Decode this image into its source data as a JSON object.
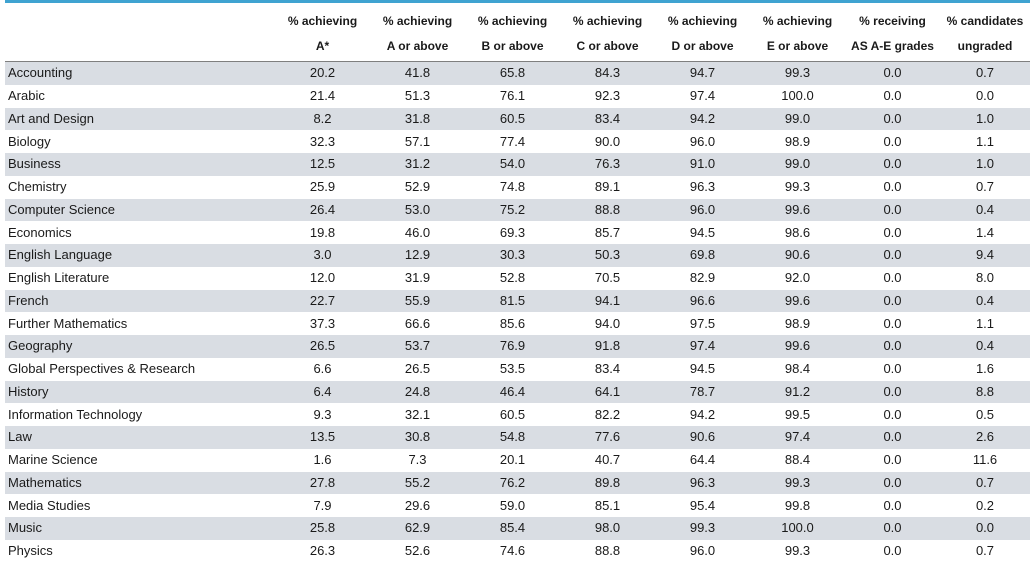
{
  "headers": [
    {
      "line1": "",
      "line2": ""
    },
    {
      "line1": "% achieving",
      "line2": "A*"
    },
    {
      "line1": "% achieving",
      "line2": "A or above"
    },
    {
      "line1": "% achieving",
      "line2": "B or above"
    },
    {
      "line1": "% achieving",
      "line2": "C or above"
    },
    {
      "line1": "% achieving",
      "line2": "D or above"
    },
    {
      "line1": "% achieving",
      "line2": "E or above"
    },
    {
      "line1": "% receiving",
      "line2": "AS A-E grades"
    },
    {
      "line1": "% candidates",
      "line2": "ungraded"
    }
  ],
  "rows": [
    [
      "Accounting",
      "20.2",
      "41.8",
      "65.8",
      "84.3",
      "94.7",
      "99.3",
      "0.0",
      "0.7"
    ],
    [
      "Arabic",
      "21.4",
      "51.3",
      "76.1",
      "92.3",
      "97.4",
      "100.0",
      "0.0",
      "0.0"
    ],
    [
      "Art and Design",
      "8.2",
      "31.8",
      "60.5",
      "83.4",
      "94.2",
      "99.0",
      "0.0",
      "1.0"
    ],
    [
      "Biology",
      "32.3",
      "57.1",
      "77.4",
      "90.0",
      "96.0",
      "98.9",
      "0.0",
      "1.1"
    ],
    [
      "Business",
      "12.5",
      "31.2",
      "54.0",
      "76.3",
      "91.0",
      "99.0",
      "0.0",
      "1.0"
    ],
    [
      "Chemistry",
      "25.9",
      "52.9",
      "74.8",
      "89.1",
      "96.3",
      "99.3",
      "0.0",
      "0.7"
    ],
    [
      "Computer Science",
      "26.4",
      "53.0",
      "75.2",
      "88.8",
      "96.0",
      "99.6",
      "0.0",
      "0.4"
    ],
    [
      "Economics",
      "19.8",
      "46.0",
      "69.3",
      "85.7",
      "94.5",
      "98.6",
      "0.0",
      "1.4"
    ],
    [
      "English Language",
      "3.0",
      "12.9",
      "30.3",
      "50.3",
      "69.8",
      "90.6",
      "0.0",
      "9.4"
    ],
    [
      "English Literature",
      "12.0",
      "31.9",
      "52.8",
      "70.5",
      "82.9",
      "92.0",
      "0.0",
      "8.0"
    ],
    [
      "French",
      "22.7",
      "55.9",
      "81.5",
      "94.1",
      "96.6",
      "99.6",
      "0.0",
      "0.4"
    ],
    [
      "Further Mathematics",
      "37.3",
      "66.6",
      "85.6",
      "94.0",
      "97.5",
      "98.9",
      "0.0",
      "1.1"
    ],
    [
      "Geography",
      "26.5",
      "53.7",
      "76.9",
      "91.8",
      "97.4",
      "99.6",
      "0.0",
      "0.4"
    ],
    [
      "Global Perspectives & Research",
      "6.6",
      "26.5",
      "53.5",
      "83.4",
      "94.5",
      "98.4",
      "0.0",
      "1.6"
    ],
    [
      "History",
      "6.4",
      "24.8",
      "46.4",
      "64.1",
      "78.7",
      "91.2",
      "0.0",
      "8.8"
    ],
    [
      "Information Technology",
      "9.3",
      "32.1",
      "60.5",
      "82.2",
      "94.2",
      "99.5",
      "0.0",
      "0.5"
    ],
    [
      "Law",
      "13.5",
      "30.8",
      "54.8",
      "77.6",
      "90.6",
      "97.4",
      "0.0",
      "2.6"
    ],
    [
      "Marine Science",
      "1.6",
      "7.3",
      "20.1",
      "40.7",
      "64.4",
      "88.4",
      "0.0",
      "11.6"
    ],
    [
      "Mathematics",
      "27.8",
      "55.2",
      "76.2",
      "89.8",
      "96.3",
      "99.3",
      "0.0",
      "0.7"
    ],
    [
      "Media Studies",
      "7.9",
      "29.6",
      "59.0",
      "85.1",
      "95.4",
      "99.8",
      "0.0",
      "0.2"
    ],
    [
      "Music",
      "25.8",
      "62.9",
      "85.4",
      "98.0",
      "99.3",
      "100.0",
      "0.0",
      "0.0"
    ],
    [
      "Physics",
      "26.3",
      "52.6",
      "74.6",
      "88.8",
      "96.0",
      "99.3",
      "0.0",
      "0.7"
    ]
  ],
  "colors": {
    "accent_rule": "#3fa3d1",
    "stripe": "#d9dde3",
    "header_rule": "#7f7f7f"
  }
}
